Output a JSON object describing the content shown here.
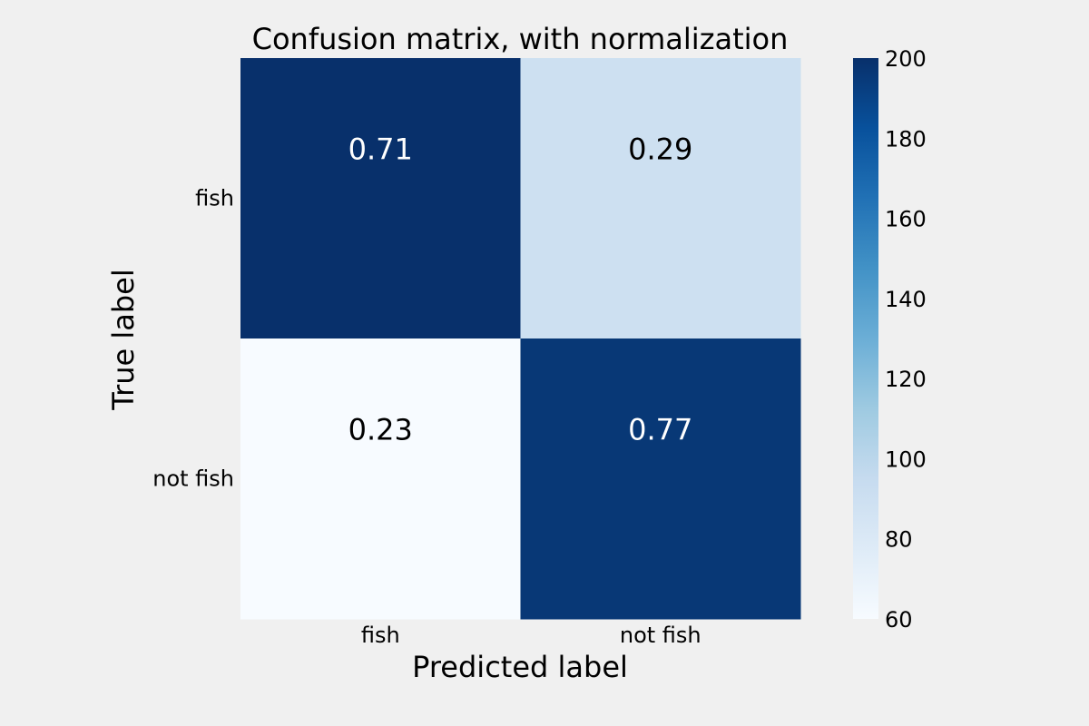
{
  "chart_data": {
    "type": "heatmap",
    "title": "Confusion matrix, with normalization",
    "xlabel": "Predicted label",
    "ylabel": "True label",
    "x_categories": [
      "fish",
      "not fish"
    ],
    "y_categories": [
      "fish",
      "not fish"
    ],
    "values": [
      [
        0.71,
        0.29
      ],
      [
        0.23,
        0.77
      ]
    ],
    "color_values": [
      [
        200,
        90
      ],
      [
        60,
        196
      ]
    ],
    "colormap": "Blues",
    "colorbar": {
      "min": 60,
      "max": 200,
      "ticks": [
        "60",
        "80",
        "100",
        "120",
        "140",
        "160",
        "180",
        "200"
      ]
    },
    "grid": false
  }
}
